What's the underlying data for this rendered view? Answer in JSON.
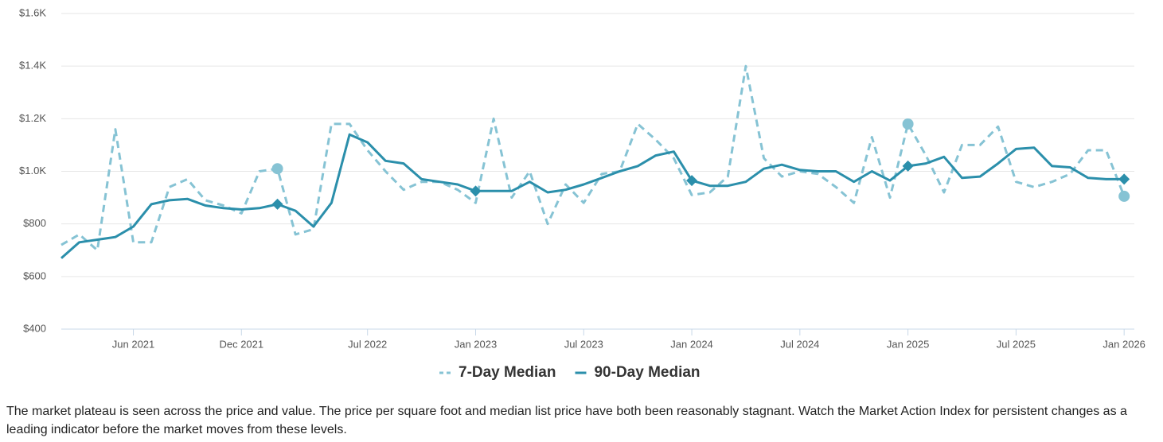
{
  "chart_data": {
    "type": "line",
    "x": [
      "Feb 2021",
      "Mar 2021",
      "Apr 2021",
      "May 2021",
      "Jun 2021",
      "Jul 2021",
      "Aug 2021",
      "Sep 2021",
      "Oct 2021",
      "Nov 2021",
      "Dec 2021",
      "Jan 2022",
      "Feb 2022",
      "Mar 2022",
      "Apr 2022",
      "May 2022",
      "Jun 2022",
      "Jul 2022",
      "Aug 2022",
      "Sep 2022",
      "Oct 2022",
      "Nov 2022",
      "Dec 2022",
      "Jan 2023",
      "Feb 2023",
      "Mar 2023",
      "Apr 2023",
      "May 2023",
      "Jun 2023",
      "Jul 2023",
      "Aug 2023",
      "Sep 2023",
      "Oct 2023",
      "Nov 2023",
      "Dec 2023",
      "Jan 2024",
      "Feb 2024",
      "Mar 2024",
      "Apr 2024",
      "May 2024",
      "Jun 2024",
      "Jul 2024",
      "Aug 2024",
      "Sep 2024",
      "Oct 2024",
      "Nov 2024",
      "Dec 2024",
      "Jan 2025",
      "Feb 2025",
      "Mar 2025",
      "Apr 2025",
      "May 2025",
      "Jun 2025",
      "Jul 2025",
      "Aug 2025",
      "Sep 2025",
      "Oct 2025",
      "Nov 2025",
      "Dec 2025",
      "Jan 2026"
    ],
    "series": [
      {
        "name": "7-Day Median",
        "color": "#86c3d4",
        "dashed": true,
        "marker": "circle",
        "highlights": [
          "Feb 2022",
          "Jan 2025",
          "Jan 2026"
        ],
        "values": [
          720,
          760,
          700,
          1160,
          730,
          730,
          940,
          970,
          890,
          870,
          840,
          1000,
          1010,
          760,
          780,
          1180,
          1180,
          1080,
          1000,
          930,
          960,
          960,
          930,
          880,
          1200,
          900,
          1000,
          800,
          950,
          880,
          990,
          1000,
          1180,
          1120,
          1050,
          910,
          920,
          980,
          1400,
          1050,
          980,
          1000,
          990,
          940,
          880,
          1130,
          900,
          1180,
          1060,
          920,
          1100,
          1100,
          1170,
          960,
          940,
          960,
          990,
          1080,
          1080,
          905
        ]
      },
      {
        "name": "90-Day Median",
        "color": "#2b8fab",
        "dashed": false,
        "marker": "diamond",
        "highlights": [
          "Feb 2022",
          "Jan 2023",
          "Jan 2024",
          "Jan 2025",
          "Jan 2026"
        ],
        "values": [
          670,
          730,
          740,
          750,
          790,
          875,
          890,
          895,
          870,
          860,
          855,
          860,
          875,
          850,
          790,
          880,
          1140,
          1110,
          1040,
          1030,
          970,
          960,
          950,
          925,
          925,
          925,
          960,
          920,
          930,
          950,
          975,
          1000,
          1020,
          1060,
          1075,
          965,
          945,
          945,
          960,
          1010,
          1025,
          1005,
          1000,
          1000,
          960,
          1000,
          965,
          1020,
          1030,
          1055,
          975,
          980,
          1030,
          1085,
          1090,
          1020,
          1015,
          975,
          970,
          970
        ]
      }
    ],
    "xticks": [
      "Jun 2021",
      "Dec 2021",
      "Jul 2022",
      "Jan 2023",
      "Jul 2023",
      "Jan 2024",
      "Jul 2024",
      "Jan 2025",
      "Jul 2025",
      "Jan 2026"
    ],
    "ylim": [
      400,
      1600
    ],
    "yticks": [
      {
        "value": 400,
        "label": "$400"
      },
      {
        "value": 600,
        "label": "$600"
      },
      {
        "value": 800,
        "label": "$800"
      },
      {
        "value": 1000,
        "label": "$1.0K"
      },
      {
        "value": 1200,
        "label": "$1.2K"
      },
      {
        "value": 1400,
        "label": "$1.4K"
      },
      {
        "value": 1600,
        "label": "$1.6K"
      }
    ],
    "grid": true,
    "legend": "bottom"
  },
  "caption": "The market plateau is seen across the price and value. The price per square foot and median list price have both been reasonably stagnant. Watch the Market Action Index for persistent changes as a leading indicator before the market moves from these levels."
}
